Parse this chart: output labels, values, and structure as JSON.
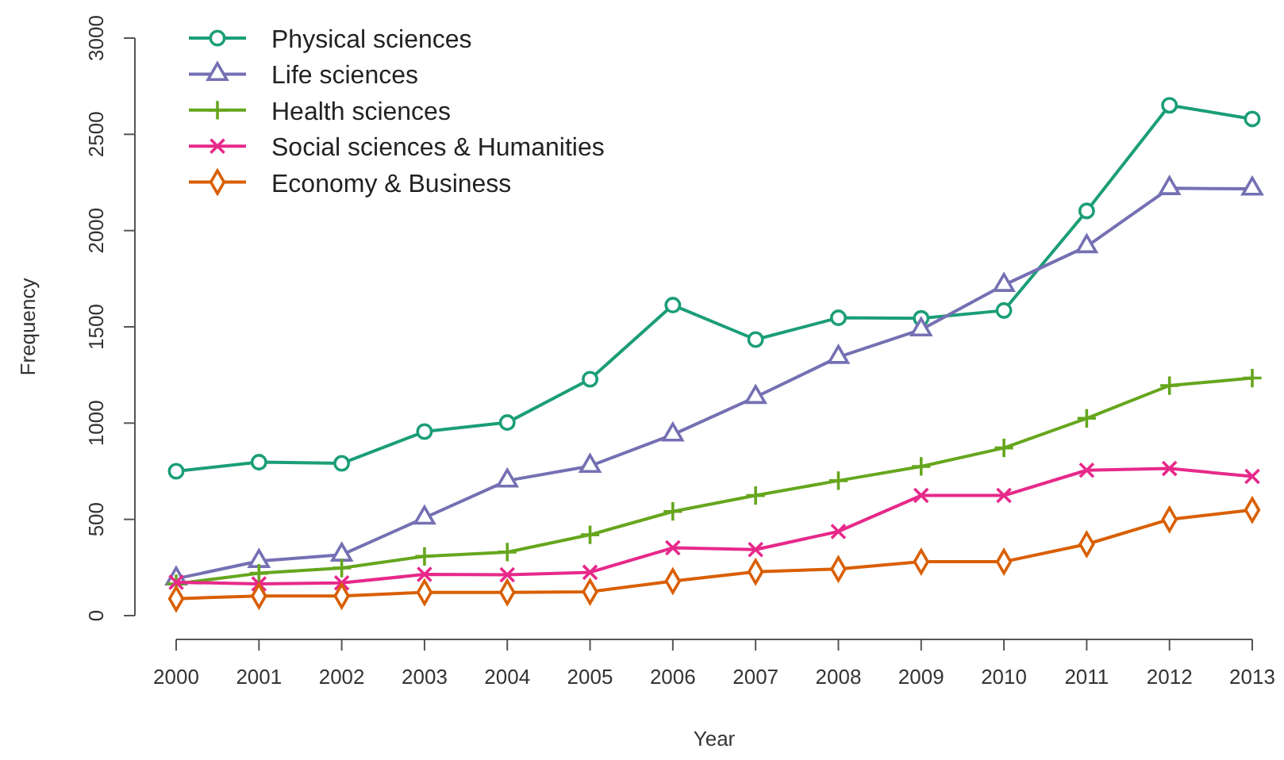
{
  "chart_data": {
    "type": "line",
    "xlabel": "Year",
    "ylabel": "Frequency",
    "x": [
      2000,
      2001,
      2002,
      2003,
      2004,
      2005,
      2006,
      2007,
      2008,
      2009,
      2010,
      2011,
      2012,
      2013
    ],
    "xlim": [
      2000,
      2013
    ],
    "xticks": [
      2000,
      2001,
      2002,
      2003,
      2004,
      2005,
      2006,
      2007,
      2008,
      2009,
      2010,
      2011,
      2012,
      2013
    ],
    "ylim": [
      0,
      3000
    ],
    "yticks": [
      0,
      500,
      1000,
      1500,
      2000,
      2500,
      3000
    ],
    "grid": false,
    "legend": "top left",
    "line_style": "solid",
    "series": [
      {
        "name": "Physical sciences",
        "color": "#1b9e77",
        "marker": "circle",
        "values": [
          750,
          797,
          791,
          956,
          1003,
          1228,
          1613,
          1434,
          1547,
          1544,
          1585,
          2102,
          2651,
          2580
        ]
      },
      {
        "name": "Life sciences",
        "color": "#7570b3",
        "marker": "triangle",
        "values": [
          192,
          283,
          316,
          508,
          701,
          777,
          940,
          1135,
          1343,
          1486,
          1717,
          1918,
          2220,
          2217
        ]
      },
      {
        "name": "Health sciences",
        "color": "#66a61e",
        "marker": "plus",
        "values": [
          165,
          220,
          247,
          308,
          330,
          420,
          541,
          624,
          701,
          775,
          871,
          1025,
          1195,
          1234
        ]
      },
      {
        "name": "Social sciences & Humanities",
        "color": "#e7298a",
        "marker": "cross",
        "values": [
          173,
          165,
          170,
          214,
          212,
          225,
          352,
          343,
          437,
          624,
          624,
          755,
          764,
          723
        ]
      },
      {
        "name": "Economy & Business",
        "color": "#d95f02",
        "marker": "diamond",
        "values": [
          88,
          102,
          102,
          121,
          121,
          124,
          179,
          228,
          242,
          280,
          280,
          371,
          500,
          549
        ]
      }
    ]
  }
}
